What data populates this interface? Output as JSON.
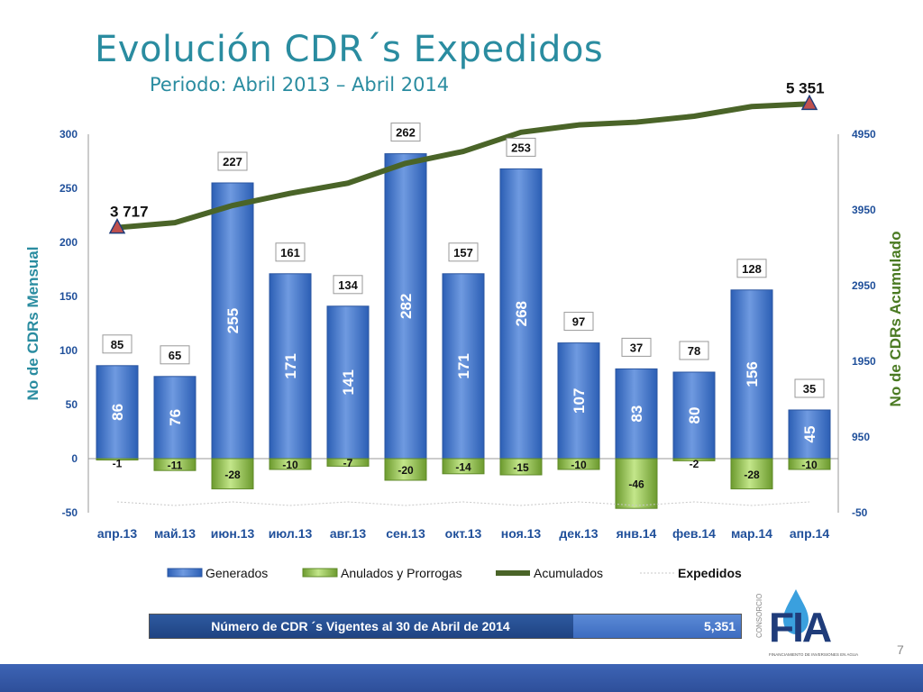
{
  "title": "Evolución CDR´s Expedidos",
  "subtitle": "Periodo: Abril 2013 – Abril 2014",
  "summary": {
    "label": "Número de CDR ´s Vigentes al 30 de Abril de 2014",
    "value": "5,351"
  },
  "page_number": "7",
  "logo": {
    "vertical_text": "CONSORCIO",
    "letters": "FIA",
    "tagline": "FINANCIAMIENTO DE INVERSIONES EN AGUA"
  },
  "colors": {
    "generados": "#3f72c8",
    "anulados": "#9acd54",
    "acumulados": "#4a6428",
    "title": "#2a8ca0",
    "axis_text": "#1f4f9a",
    "axis_title": "#2a8ca0"
  },
  "chart_data": {
    "type": "bar",
    "categories": [
      "апр.13",
      "май.13",
      "июн.13",
      "июл.13",
      "авг.13",
      "сен.13",
      "окт.13",
      "ноя.13",
      "дек.13",
      "янв.14",
      "фев.14",
      "мар.14",
      "апр.14"
    ],
    "series": [
      {
        "name": "Generados",
        "type": "bar",
        "axis": "left",
        "values": [
          86,
          76,
          255,
          171,
          141,
          282,
          171,
          268,
          107,
          83,
          80,
          156,
          45
        ]
      },
      {
        "name": "Anulados y Prorrogas",
        "type": "bar",
        "axis": "left",
        "values": [
          -1,
          -11,
          -28,
          -10,
          -7,
          -20,
          -14,
          -15,
          -10,
          -46,
          -2,
          -28,
          -10
        ]
      },
      {
        "name": "Acumulados",
        "type": "line",
        "axis": "right",
        "values": [
          3717,
          3782,
          4009,
          4170,
          4304,
          4566,
          4723,
          4976,
          5073,
          5110,
          5188,
          5316,
          5351
        ]
      },
      {
        "name": "Expedidos",
        "type": "line",
        "axis": "left",
        "values": [
          85,
          65,
          227,
          161,
          134,
          262,
          157,
          253,
          97,
          37,
          78,
          128,
          35
        ]
      }
    ],
    "point_labels": {
      "first": "3 717",
      "last": "5 351"
    },
    "ylabel": "No de CDRs Mensual",
    "y2label": "No de CDRs Acumulado",
    "ylim": [
      -50,
      300
    ],
    "yticks": [
      -50,
      0,
      50,
      100,
      150,
      200,
      250,
      300
    ],
    "y2lim": [
      -50,
      4950
    ],
    "y2ticks": [
      -50,
      950,
      1950,
      2950,
      3950,
      4950
    ],
    "legend": "bottom"
  }
}
